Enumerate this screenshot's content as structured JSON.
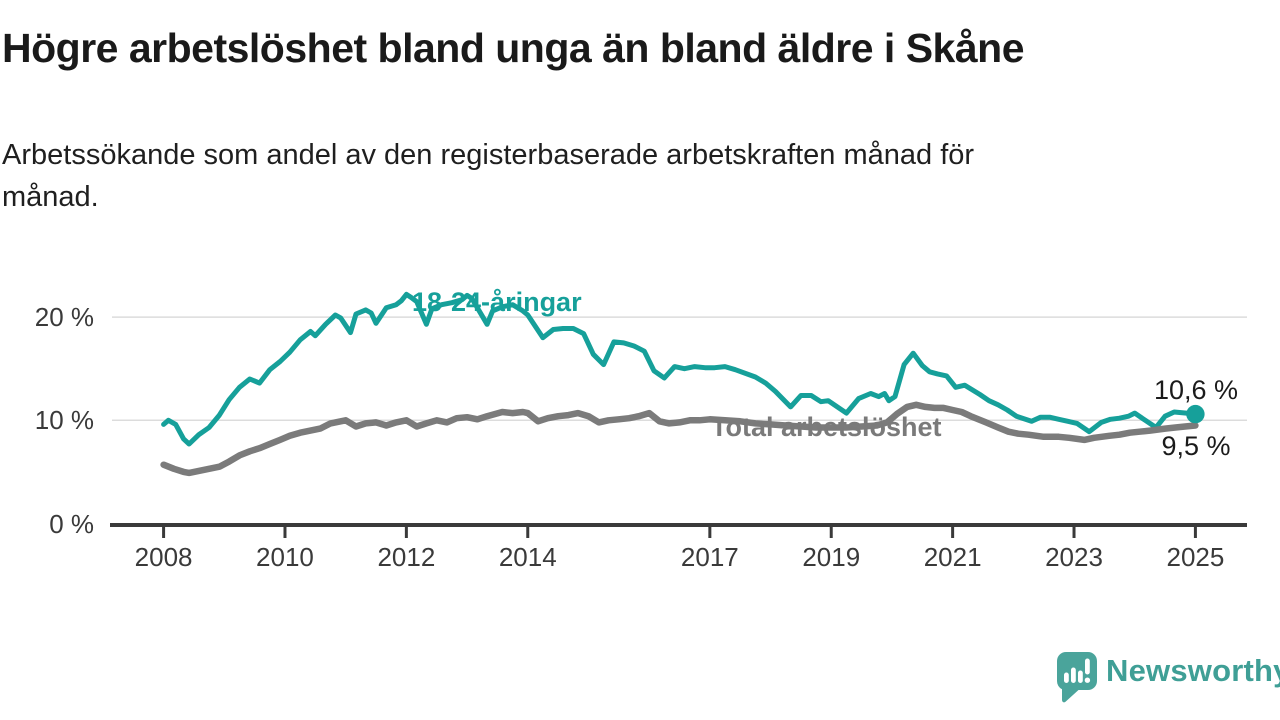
{
  "chart_data": {
    "type": "line",
    "title": "Högre arbetslöshet bland unga än bland äldre i Skåne",
    "subtitle_lines": [
      "Arbetssökande som andel av den registerbaserade arbetskraften månad för",
      "månad."
    ],
    "unit": "%",
    "xlim": [
      2007.15,
      2025.85
    ],
    "ylim": [
      0,
      23.2
    ],
    "grid": "horizontal",
    "grid_y_values": [
      10,
      20
    ],
    "y_ticks": [
      {
        "v": 0,
        "label": "0 %"
      },
      {
        "v": 10,
        "label": "10 %"
      },
      {
        "v": 20,
        "label": "20 %"
      }
    ],
    "x_ticks": [
      {
        "t": 2008,
        "label": "2008"
      },
      {
        "t": 2010,
        "label": "2010"
      },
      {
        "t": 2012,
        "label": "2012"
      },
      {
        "t": 2014,
        "label": "2014"
      },
      {
        "t": 2017,
        "label": "2017"
      },
      {
        "t": 2019,
        "label": "2019"
      },
      {
        "t": 2021,
        "label": "2021"
      },
      {
        "t": 2023,
        "label": "2023"
      },
      {
        "t": 2025,
        "label": "2025"
      }
    ],
    "legend_position": "inline-labels",
    "series": [
      {
        "name": "18-24-åringar",
        "label": "18-24-åringar",
        "color": "#16a09a",
        "line_width": 5,
        "end_value": 10.6,
        "end_label": "10,6 %",
        "end_marker": true,
        "points": [
          [
            2008.0,
            9.6
          ],
          [
            2008.08,
            10.0
          ],
          [
            2008.2,
            9.6
          ],
          [
            2008.33,
            8.2
          ],
          [
            2008.42,
            7.7
          ],
          [
            2008.58,
            8.6
          ],
          [
            2008.75,
            9.3
          ],
          [
            2008.92,
            10.5
          ],
          [
            2009.08,
            12.0
          ],
          [
            2009.25,
            13.2
          ],
          [
            2009.42,
            14.0
          ],
          [
            2009.58,
            13.6
          ],
          [
            2009.75,
            14.9
          ],
          [
            2009.92,
            15.7
          ],
          [
            2010.08,
            16.6
          ],
          [
            2010.25,
            17.8
          ],
          [
            2010.42,
            18.6
          ],
          [
            2010.5,
            18.2
          ],
          [
            2010.67,
            19.3
          ],
          [
            2010.83,
            20.2
          ],
          [
            2010.92,
            19.9
          ],
          [
            2011.08,
            18.5
          ],
          [
            2011.17,
            20.3
          ],
          [
            2011.33,
            20.7
          ],
          [
            2011.42,
            20.4
          ],
          [
            2011.5,
            19.4
          ],
          [
            2011.67,
            20.9
          ],
          [
            2011.83,
            21.2
          ],
          [
            2011.92,
            21.6
          ],
          [
            2012.0,
            22.2
          ],
          [
            2012.08,
            21.9
          ],
          [
            2012.17,
            21.5
          ],
          [
            2012.33,
            19.3
          ],
          [
            2012.42,
            20.8
          ],
          [
            2012.58,
            21.2
          ],
          [
            2012.75,
            21.4
          ],
          [
            2012.92,
            21.7
          ],
          [
            2013.0,
            22.1
          ],
          [
            2013.08,
            21.8
          ],
          [
            2013.33,
            19.3
          ],
          [
            2013.42,
            20.6
          ],
          [
            2013.58,
            21.0
          ],
          [
            2013.75,
            21.2
          ],
          [
            2013.92,
            20.6
          ],
          [
            2014.0,
            20.2
          ],
          [
            2014.25,
            18.0
          ],
          [
            2014.42,
            18.8
          ],
          [
            2014.58,
            18.9
          ],
          [
            2014.75,
            18.9
          ],
          [
            2014.92,
            18.4
          ],
          [
            2015.08,
            16.4
          ],
          [
            2015.25,
            15.4
          ],
          [
            2015.42,
            17.6
          ],
          [
            2015.58,
            17.5
          ],
          [
            2015.75,
            17.2
          ],
          [
            2015.92,
            16.7
          ],
          [
            2016.08,
            14.8
          ],
          [
            2016.25,
            14.1
          ],
          [
            2016.42,
            15.2
          ],
          [
            2016.58,
            15.0
          ],
          [
            2016.75,
            15.2
          ],
          [
            2016.92,
            15.1
          ],
          [
            2017.08,
            15.1
          ],
          [
            2017.25,
            15.2
          ],
          [
            2017.42,
            14.9
          ],
          [
            2017.75,
            14.2
          ],
          [
            2017.92,
            13.6
          ],
          [
            2018.08,
            12.8
          ],
          [
            2018.33,
            11.3
          ],
          [
            2018.5,
            12.4
          ],
          [
            2018.67,
            12.4
          ],
          [
            2018.83,
            11.8
          ],
          [
            2018.95,
            11.9
          ],
          [
            2019.25,
            10.7
          ],
          [
            2019.45,
            12.1
          ],
          [
            2019.65,
            12.6
          ],
          [
            2019.78,
            12.3
          ],
          [
            2019.88,
            12.6
          ],
          [
            2019.95,
            11.9
          ],
          [
            2020.05,
            12.3
          ],
          [
            2020.2,
            15.4
          ],
          [
            2020.35,
            16.5
          ],
          [
            2020.5,
            15.3
          ],
          [
            2020.62,
            14.7
          ],
          [
            2020.75,
            14.5
          ],
          [
            2020.9,
            14.3
          ],
          [
            2021.05,
            13.2
          ],
          [
            2021.2,
            13.4
          ],
          [
            2021.45,
            12.5
          ],
          [
            2021.6,
            11.9
          ],
          [
            2021.75,
            11.5
          ],
          [
            2021.9,
            11.0
          ],
          [
            2022.05,
            10.4
          ],
          [
            2022.3,
            9.9
          ],
          [
            2022.45,
            10.3
          ],
          [
            2022.6,
            10.3
          ],
          [
            2022.75,
            10.1
          ],
          [
            2022.9,
            9.9
          ],
          [
            2023.05,
            9.7
          ],
          [
            2023.25,
            8.9
          ],
          [
            2023.45,
            9.8
          ],
          [
            2023.6,
            10.1
          ],
          [
            2023.75,
            10.2
          ],
          [
            2023.9,
            10.4
          ],
          [
            2024.0,
            10.7
          ],
          [
            2024.15,
            10.1
          ],
          [
            2024.35,
            9.3
          ],
          [
            2024.5,
            10.4
          ],
          [
            2024.65,
            10.8
          ],
          [
            2024.85,
            10.7
          ],
          [
            2025.0,
            10.6
          ]
        ]
      },
      {
        "name": "Total arbetslöshet",
        "label": "Total arbetslöshet",
        "color": "#7b7b7b",
        "line_width": 6.5,
        "end_value": 9.5,
        "end_label": "9,5 %",
        "end_marker": false,
        "points": [
          [
            2008.0,
            5.7
          ],
          [
            2008.17,
            5.3
          ],
          [
            2008.33,
            5.0
          ],
          [
            2008.42,
            4.9
          ],
          [
            2008.58,
            5.1
          ],
          [
            2008.75,
            5.3
          ],
          [
            2008.92,
            5.5
          ],
          [
            2009.08,
            6.0
          ],
          [
            2009.25,
            6.6
          ],
          [
            2009.42,
            7.0
          ],
          [
            2009.58,
            7.3
          ],
          [
            2009.75,
            7.7
          ],
          [
            2009.92,
            8.1
          ],
          [
            2010.08,
            8.5
          ],
          [
            2010.25,
            8.8
          ],
          [
            2010.42,
            9.0
          ],
          [
            2010.58,
            9.2
          ],
          [
            2010.75,
            9.7
          ],
          [
            2010.92,
            9.9
          ],
          [
            2011.0,
            10.0
          ],
          [
            2011.17,
            9.4
          ],
          [
            2011.33,
            9.7
          ],
          [
            2011.5,
            9.8
          ],
          [
            2011.67,
            9.5
          ],
          [
            2011.83,
            9.8
          ],
          [
            2012.0,
            10.0
          ],
          [
            2012.17,
            9.4
          ],
          [
            2012.33,
            9.7
          ],
          [
            2012.5,
            10.0
          ],
          [
            2012.67,
            9.8
          ],
          [
            2012.83,
            10.2
          ],
          [
            2013.0,
            10.3
          ],
          [
            2013.17,
            10.1
          ],
          [
            2013.33,
            10.4
          ],
          [
            2013.58,
            10.8
          ],
          [
            2013.75,
            10.7
          ],
          [
            2013.92,
            10.8
          ],
          [
            2014.0,
            10.7
          ],
          [
            2014.17,
            9.9
          ],
          [
            2014.33,
            10.2
          ],
          [
            2014.5,
            10.4
          ],
          [
            2014.67,
            10.5
          ],
          [
            2014.83,
            10.7
          ],
          [
            2015.0,
            10.4
          ],
          [
            2015.17,
            9.8
          ],
          [
            2015.33,
            10.0
          ],
          [
            2015.5,
            10.1
          ],
          [
            2015.67,
            10.2
          ],
          [
            2015.83,
            10.4
          ],
          [
            2016.0,
            10.7
          ],
          [
            2016.17,
            9.9
          ],
          [
            2016.33,
            9.7
          ],
          [
            2016.5,
            9.8
          ],
          [
            2016.67,
            10.0
          ],
          [
            2016.83,
            10.0
          ],
          [
            2017.0,
            10.1
          ],
          [
            2017.25,
            10.0
          ],
          [
            2017.5,
            9.9
          ],
          [
            2017.75,
            9.7
          ],
          [
            2018.0,
            9.6
          ],
          [
            2018.25,
            9.5
          ],
          [
            2018.5,
            9.4
          ],
          [
            2018.75,
            9.3
          ],
          [
            2019.0,
            9.3
          ],
          [
            2019.25,
            9.3
          ],
          [
            2019.5,
            9.4
          ],
          [
            2019.75,
            9.5
          ],
          [
            2019.92,
            9.8
          ],
          [
            2020.08,
            10.6
          ],
          [
            2020.25,
            11.3
          ],
          [
            2020.4,
            11.5
          ],
          [
            2020.55,
            11.3
          ],
          [
            2020.7,
            11.2
          ],
          [
            2020.85,
            11.2
          ],
          [
            2021.0,
            11.0
          ],
          [
            2021.15,
            10.8
          ],
          [
            2021.3,
            10.4
          ],
          [
            2021.55,
            9.8
          ],
          [
            2021.75,
            9.3
          ],
          [
            2021.92,
            8.9
          ],
          [
            2022.08,
            8.7
          ],
          [
            2022.25,
            8.6
          ],
          [
            2022.5,
            8.4
          ],
          [
            2022.75,
            8.4
          ],
          [
            2022.92,
            8.3
          ],
          [
            2023.17,
            8.1
          ],
          [
            2023.33,
            8.3
          ],
          [
            2023.58,
            8.5
          ],
          [
            2023.75,
            8.6
          ],
          [
            2023.92,
            8.8
          ],
          [
            2024.08,
            8.9
          ],
          [
            2024.25,
            9.0
          ],
          [
            2024.5,
            9.2
          ],
          [
            2024.67,
            9.3
          ],
          [
            2024.83,
            9.4
          ],
          [
            2025.0,
            9.5
          ]
        ]
      }
    ]
  },
  "colors": {
    "accent_teal": "#16a09a",
    "series_gray": "#7b7b7b",
    "gridline": "#dcdcdc",
    "axis": "#3a3a3a",
    "text_dark": "#1a1a1a",
    "brand_teal": "#3f9f96",
    "brand_icon_teal": "#4aa49b"
  },
  "footer": {
    "brand": "Newsworthy"
  }
}
